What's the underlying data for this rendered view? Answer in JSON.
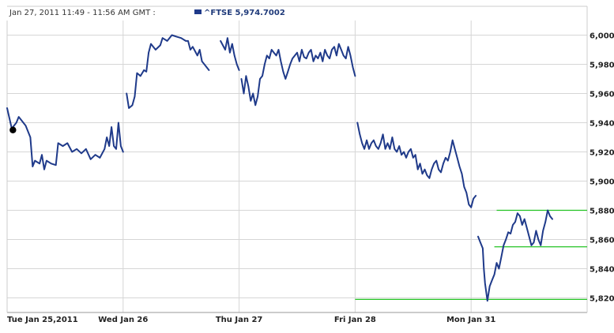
{
  "header": {
    "info": "Jan 27, 2011 11:49 - 11:56 AM GMT :",
    "legend_label": "^FTSE 5,974.7002"
  },
  "colors": {
    "series": "#1f3a8a",
    "grid": "#d6d6d6",
    "annotation": "#22c322",
    "marker": "#000000"
  },
  "chart_data": {
    "type": "line",
    "title": "",
    "xlabel": "",
    "ylabel": "",
    "ylim": [
      5810,
      6010
    ],
    "yticks": [
      5820,
      5840,
      5860,
      5880,
      5900,
      5920,
      5940,
      5960,
      5980,
      6000
    ],
    "ytick_labels": [
      "5,820",
      "5,840",
      "5,860",
      "5,880",
      "5,900",
      "5,920",
      "5,940",
      "5,960",
      "5,980",
      "6,000"
    ],
    "x_labels": [
      "Tue Jan 25,2011",
      "Wed Jan 26",
      "Thu Jan 27",
      "Fri Jan 28",
      "Mon Jan 31"
    ],
    "x_range": [
      0,
      5
    ],
    "grid": true,
    "series": [
      {
        "name": "^FTSE",
        "segments": [
          [
            [
              0.0,
              5950
            ],
            [
              0.04,
              5936
            ],
            [
              0.08,
              5940
            ],
            [
              0.1,
              5944
            ],
            [
              0.12,
              5942
            ],
            [
              0.16,
              5938
            ],
            [
              0.2,
              5930
            ],
            [
              0.22,
              5910
            ],
            [
              0.24,
              5914
            ],
            [
              0.28,
              5912
            ],
            [
              0.3,
              5918
            ],
            [
              0.32,
              5908
            ],
            [
              0.34,
              5914
            ],
            [
              0.38,
              5912
            ],
            [
              0.42,
              5911
            ],
            [
              0.44,
              5926
            ],
            [
              0.48,
              5924
            ],
            [
              0.52,
              5926
            ],
            [
              0.56,
              5920
            ],
            [
              0.6,
              5922
            ],
            [
              0.64,
              5919
            ],
            [
              0.68,
              5922
            ],
            [
              0.72,
              5915
            ],
            [
              0.76,
              5918
            ],
            [
              0.8,
              5916
            ],
            [
              0.84,
              5922
            ],
            [
              0.86,
              5930
            ],
            [
              0.88,
              5924
            ],
            [
              0.9,
              5937
            ],
            [
              0.92,
              5924
            ],
            [
              0.94,
              5922
            ],
            [
              0.96,
              5940
            ],
            [
              0.98,
              5924
            ],
            [
              1.0,
              5920
            ]
          ],
          [
            [
              1.03,
              5960
            ],
            [
              1.05,
              5950
            ],
            [
              1.08,
              5952
            ],
            [
              1.1,
              5958
            ],
            [
              1.12,
              5974
            ],
            [
              1.15,
              5972
            ],
            [
              1.18,
              5976
            ],
            [
              1.2,
              5975
            ],
            [
              1.22,
              5988
            ],
            [
              1.24,
              5994
            ],
            [
              1.28,
              5990
            ],
            [
              1.32,
              5993
            ],
            [
              1.34,
              5998
            ],
            [
              1.38,
              5996
            ],
            [
              1.42,
              6000
            ],
            [
              1.46,
              5999
            ],
            [
              1.5,
              5998
            ],
            [
              1.54,
              5996
            ],
            [
              1.56,
              5996
            ],
            [
              1.58,
              5990
            ],
            [
              1.6,
              5992
            ],
            [
              1.64,
              5986
            ],
            [
              1.66,
              5990
            ],
            [
              1.68,
              5982
            ],
            [
              1.7,
              5980
            ],
            [
              1.74,
              5976
            ]
          ],
          [
            [
              1.84,
              5996
            ],
            [
              1.88,
              5990
            ],
            [
              1.9,
              5998
            ],
            [
              1.92,
              5988
            ],
            [
              1.94,
              5994
            ],
            [
              1.96,
              5986
            ],
            [
              1.98,
              5980
            ],
            [
              2.0,
              5976
            ]
          ],
          [
            [
              2.02,
              5970
            ],
            [
              2.04,
              5960
            ],
            [
              2.06,
              5972
            ],
            [
              2.08,
              5965
            ],
            [
              2.1,
              5955
            ],
            [
              2.12,
              5960
            ],
            [
              2.14,
              5952
            ],
            [
              2.16,
              5958
            ],
            [
              2.18,
              5970
            ],
            [
              2.2,
              5972
            ],
            [
              2.22,
              5980
            ],
            [
              2.24,
              5986
            ],
            [
              2.26,
              5984
            ],
            [
              2.28,
              5990
            ],
            [
              2.3,
              5988
            ],
            [
              2.32,
              5986
            ],
            [
              2.34,
              5990
            ],
            [
              2.36,
              5982
            ],
            [
              2.38,
              5975
            ],
            [
              2.4,
              5970
            ],
            [
              2.42,
              5975
            ],
            [
              2.44,
              5980
            ],
            [
              2.46,
              5984
            ],
            [
              2.48,
              5986
            ],
            [
              2.5,
              5988
            ],
            [
              2.52,
              5982
            ],
            [
              2.54,
              5990
            ],
            [
              2.56,
              5985
            ],
            [
              2.58,
              5984
            ],
            [
              2.6,
              5988
            ],
            [
              2.62,
              5990
            ],
            [
              2.64,
              5982
            ],
            [
              2.66,
              5986
            ],
            [
              2.68,
              5984
            ],
            [
              2.7,
              5988
            ],
            [
              2.72,
              5982
            ],
            [
              2.74,
              5990
            ],
            [
              2.76,
              5986
            ],
            [
              2.78,
              5984
            ],
            [
              2.8,
              5990
            ],
            [
              2.82,
              5992
            ],
            [
              2.84,
              5986
            ],
            [
              2.86,
              5994
            ],
            [
              2.88,
              5990
            ],
            [
              2.9,
              5986
            ],
            [
              2.92,
              5984
            ],
            [
              2.94,
              5992
            ],
            [
              2.96,
              5986
            ],
            [
              2.98,
              5978
            ],
            [
              3.0,
              5972
            ]
          ],
          [
            [
              3.02,
              5940
            ],
            [
              3.04,
              5932
            ],
            [
              3.06,
              5926
            ],
            [
              3.08,
              5922
            ],
            [
              3.1,
              5928
            ],
            [
              3.12,
              5922
            ],
            [
              3.14,
              5926
            ],
            [
              3.16,
              5928
            ],
            [
              3.18,
              5924
            ],
            [
              3.2,
              5922
            ],
            [
              3.22,
              5926
            ],
            [
              3.24,
              5932
            ],
            [
              3.26,
              5922
            ],
            [
              3.28,
              5926
            ],
            [
              3.3,
              5922
            ],
            [
              3.32,
              5930
            ],
            [
              3.34,
              5922
            ],
            [
              3.36,
              5920
            ],
            [
              3.38,
              5924
            ],
            [
              3.4,
              5918
            ],
            [
              3.42,
              5920
            ],
            [
              3.44,
              5916
            ],
            [
              3.46,
              5920
            ],
            [
              3.48,
              5922
            ],
            [
              3.5,
              5916
            ],
            [
              3.52,
              5918
            ],
            [
              3.54,
              5908
            ],
            [
              3.56,
              5912
            ],
            [
              3.58,
              5905
            ],
            [
              3.6,
              5908
            ],
            [
              3.62,
              5904
            ],
            [
              3.64,
              5902
            ],
            [
              3.66,
              5908
            ],
            [
              3.68,
              5912
            ],
            [
              3.7,
              5914
            ],
            [
              3.72,
              5908
            ],
            [
              3.74,
              5906
            ],
            [
              3.76,
              5912
            ],
            [
              3.78,
              5916
            ],
            [
              3.8,
              5914
            ],
            [
              3.82,
              5920
            ],
            [
              3.84,
              5928
            ],
            [
              3.86,
              5922
            ],
            [
              3.88,
              5916
            ],
            [
              3.9,
              5910
            ],
            [
              3.92,
              5905
            ],
            [
              3.94,
              5896
            ],
            [
              3.96,
              5892
            ],
            [
              3.98,
              5884
            ],
            [
              4.0,
              5882
            ],
            [
              4.02,
              5888
            ],
            [
              4.04,
              5890
            ]
          ],
          [
            [
              4.06,
              5862
            ],
            [
              4.08,
              5858
            ],
            [
              4.1,
              5854
            ],
            [
              4.11,
              5840
            ],
            [
              4.12,
              5830
            ],
            [
              4.14,
              5818
            ],
            [
              4.16,
              5828
            ],
            [
              4.18,
              5832
            ],
            [
              4.2,
              5836
            ],
            [
              4.22,
              5844
            ],
            [
              4.24,
              5840
            ],
            [
              4.26,
              5848
            ],
            [
              4.28,
              5856
            ],
            [
              4.3,
              5860
            ],
            [
              4.32,
              5865
            ],
            [
              4.34,
              5864
            ],
            [
              4.36,
              5870
            ],
            [
              4.38,
              5872
            ],
            [
              4.4,
              5878
            ],
            [
              4.42,
              5876
            ],
            [
              4.44,
              5870
            ],
            [
              4.46,
              5874
            ],
            [
              4.48,
              5868
            ],
            [
              4.5,
              5862
            ],
            [
              4.52,
              5856
            ],
            [
              4.54,
              5858
            ],
            [
              4.56,
              5866
            ],
            [
              4.58,
              5860
            ],
            [
              4.6,
              5856
            ],
            [
              4.62,
              5866
            ],
            [
              4.64,
              5872
            ],
            [
              4.66,
              5880
            ],
            [
              4.68,
              5876
            ],
            [
              4.7,
              5874
            ]
          ]
        ]
      }
    ],
    "marker_point": [
      0.05,
      5935
    ],
    "annotations": [
      {
        "type": "hline",
        "y": 5819,
        "x_from": 3.0,
        "x_to": 5.0
      },
      {
        "type": "hline",
        "y": 5880,
        "x_from": 4.22,
        "x_to": 5.0
      },
      {
        "type": "hline",
        "y": 5855,
        "x_from": 4.2,
        "x_to": 5.0
      }
    ]
  }
}
